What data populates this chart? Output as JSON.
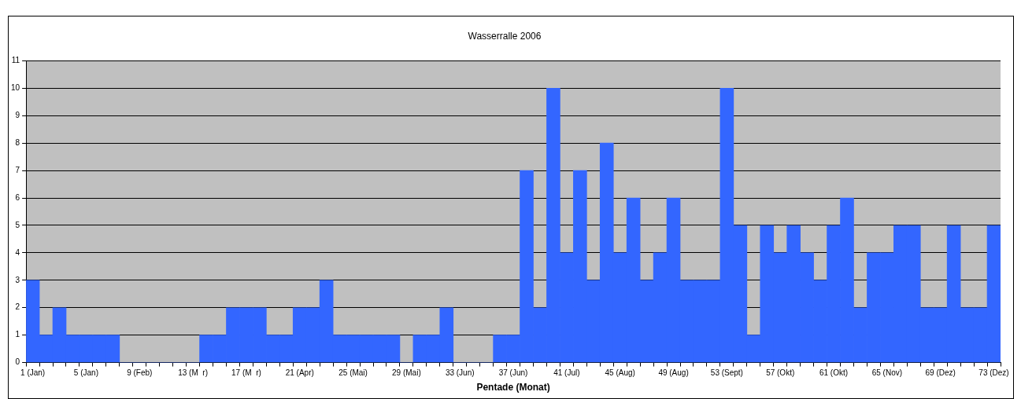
{
  "chart_data": {
    "type": "bar",
    "title": "Wasserralle 2006",
    "xlabel": "Pentade (Monat)",
    "categories": [
      "1 (Jan)",
      null,
      null,
      null,
      "5 (Jan)",
      null,
      null,
      null,
      "9 (Feb)",
      null,
      null,
      null,
      "13 (M  r)",
      null,
      null,
      null,
      "17 (M  r)",
      null,
      null,
      null,
      "21 (Apr)",
      null,
      null,
      null,
      "25 (Mai)",
      null,
      null,
      null,
      "29 (Mai)",
      null,
      null,
      null,
      "33 (Jun)",
      null,
      null,
      null,
      "37 (Jun)",
      null,
      null,
      null,
      "41 (Jul)",
      null,
      null,
      null,
      "45 (Aug)",
      null,
      null,
      null,
      "49 (Aug)",
      null,
      null,
      null,
      "53 (Sept)",
      null,
      null,
      null,
      "57 (Okt)",
      null,
      null,
      null,
      "61 (Okt)",
      null,
      null,
      null,
      "65 (Nov)",
      null,
      null,
      null,
      "69 (Dez)",
      null,
      null,
      null,
      "73 (Dez)"
    ],
    "values": [
      3,
      1,
      2,
      1,
      1,
      1,
      1,
      0,
      0,
      0,
      0,
      0,
      0,
      1,
      1,
      2,
      2,
      2,
      1,
      1,
      2,
      2,
      3,
      1,
      1,
      1,
      1,
      1,
      0,
      1,
      1,
      2,
      0,
      0,
      0,
      1,
      1,
      7,
      2,
      10,
      4,
      7,
      3,
      8,
      4,
      6,
      3,
      4,
      6,
      3,
      3,
      3,
      10,
      5,
      1,
      5,
      4,
      5,
      4,
      3,
      5,
      6,
      2,
      4,
      4,
      5,
      5,
      2,
      2,
      5,
      2,
      2,
      5
    ],
    "color": "#3366ff",
    "ylim": [
      0,
      11
    ],
    "yticks": [
      0,
      1,
      2,
      3,
      4,
      5,
      6,
      7,
      8,
      9,
      10,
      11
    ],
    "grid": "y",
    "legend": false
  }
}
